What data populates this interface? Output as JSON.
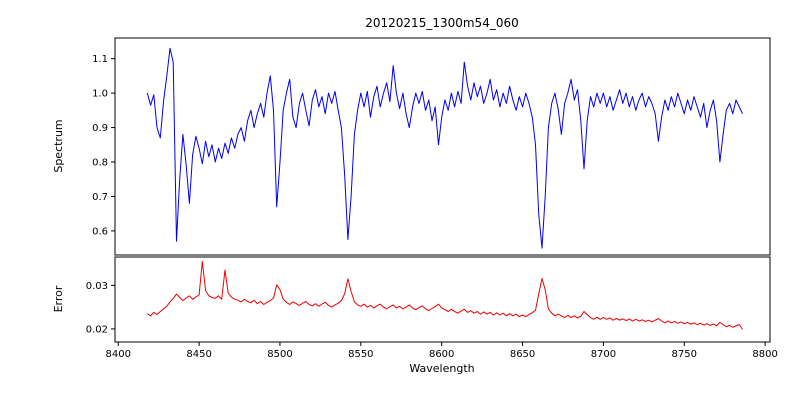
{
  "figure": {
    "title": "20120215_1300m54_060",
    "background": "#ffffff",
    "frame_color": "#000000"
  },
  "axes": {
    "xlabel": "Wavelength",
    "spectrum_ylabel": "Spectrum",
    "error_ylabel": "Error"
  },
  "chart_data": [
    {
      "type": "line",
      "name": "spectrum",
      "title": "20120215_1300m54_060",
      "ylabel": "Spectrum",
      "color": "#0000ee",
      "xlim": [
        8398,
        8803
      ],
      "ylim": [
        0.53,
        1.16
      ],
      "grid": false,
      "legend": "none",
      "ytick_values": [
        0.6,
        0.7,
        0.8,
        0.9,
        1.0,
        1.1
      ],
      "ytick_labels": [
        "0.6",
        "0.7",
        "0.8",
        "0.9",
        "1.0",
        "1.1"
      ],
      "x_start": 8418,
      "x_step": 2,
      "x_end": 8786,
      "y": [
        1.0,
        0.965,
        0.995,
        0.9,
        0.87,
        0.975,
        1.05,
        1.13,
        1.09,
        0.57,
        0.75,
        0.88,
        0.79,
        0.68,
        0.82,
        0.875,
        0.84,
        0.795,
        0.86,
        0.815,
        0.85,
        0.8,
        0.84,
        0.81,
        0.855,
        0.825,
        0.87,
        0.84,
        0.88,
        0.9,
        0.86,
        0.92,
        0.95,
        0.9,
        0.94,
        0.97,
        0.93,
        1.0,
        1.05,
        0.95,
        0.67,
        0.8,
        0.95,
        1.0,
        1.04,
        0.93,
        0.9,
        0.97,
        1.0,
        0.95,
        0.905,
        0.98,
        1.01,
        0.96,
        0.99,
        0.94,
        1.0,
        0.97,
        1.005,
        0.95,
        0.9,
        0.76,
        0.575,
        0.7,
        0.88,
        0.95,
        1.0,
        0.96,
        1.005,
        0.93,
        0.99,
        1.02,
        0.96,
        1.0,
        1.03,
        0.975,
        1.08,
        1.0,
        0.955,
        1.0,
        0.94,
        0.9,
        0.96,
        1.0,
        0.97,
        1.005,
        0.95,
        0.98,
        0.92,
        0.96,
        0.85,
        0.93,
        0.98,
        0.95,
        1.0,
        0.96,
        1.005,
        0.97,
        1.09,
        1.02,
        0.98,
        1.03,
        0.99,
        1.02,
        0.97,
        1.0,
        1.04,
        0.98,
        1.01,
        0.96,
        1.0,
        0.97,
        1.02,
        0.98,
        0.95,
        0.99,
        0.96,
        1.0,
        0.97,
        0.93,
        0.85,
        0.65,
        0.55,
        0.7,
        0.9,
        0.97,
        1.0,
        0.955,
        0.88,
        0.97,
        1.0,
        1.04,
        0.98,
        1.01,
        0.92,
        0.78,
        0.92,
        0.99,
        0.96,
        1.0,
        0.97,
        1.0,
        0.96,
        0.99,
        0.95,
        0.98,
        1.01,
        0.97,
        1.0,
        0.96,
        0.99,
        0.95,
        0.98,
        1.0,
        0.96,
        0.99,
        0.97,
        0.94,
        0.86,
        0.93,
        0.98,
        0.95,
        0.99,
        0.96,
        1.0,
        0.97,
        0.94,
        0.98,
        0.95,
        0.99,
        0.96,
        0.93,
        0.97,
        0.9,
        0.95,
        0.98,
        0.92,
        0.8,
        0.88,
        0.95,
        0.97,
        0.94,
        0.98,
        0.96,
        0.94
      ]
    },
    {
      "type": "line",
      "name": "error",
      "xlabel": "Wavelength",
      "ylabel": "Error",
      "color": "#ee0000",
      "xlim": [
        8398,
        8803
      ],
      "ylim": [
        0.017,
        0.0365
      ],
      "grid": false,
      "legend": "none",
      "ytick_values": [
        0.02,
        0.03
      ],
      "ytick_labels": [
        "0.02",
        "0.03"
      ],
      "xtick_values": [
        8400,
        8450,
        8500,
        8550,
        8600,
        8650,
        8700,
        8750,
        8800
      ],
      "xtick_labels": [
        "8400",
        "8450",
        "8500",
        "8550",
        "8600",
        "8650",
        "8700",
        "8750",
        "8800"
      ],
      "x_start": 8418,
      "x_step": 2,
      "x_end": 8786,
      "y": [
        0.0235,
        0.023,
        0.0238,
        0.0233,
        0.024,
        0.0246,
        0.0252,
        0.0262,
        0.027,
        0.028,
        0.0272,
        0.0265,
        0.0271,
        0.0276,
        0.0268,
        0.0273,
        0.0278,
        0.0355,
        0.0288,
        0.0276,
        0.0272,
        0.027,
        0.0276,
        0.0268,
        0.0335,
        0.0282,
        0.0273,
        0.0268,
        0.0266,
        0.0262,
        0.0268,
        0.0263,
        0.026,
        0.0266,
        0.0258,
        0.0263,
        0.0256,
        0.0261,
        0.0265,
        0.0271,
        0.0301,
        0.029,
        0.0268,
        0.0261,
        0.0256,
        0.0262,
        0.0258,
        0.0254,
        0.0259,
        0.0263,
        0.0256,
        0.0253,
        0.0258,
        0.0252,
        0.0257,
        0.0261,
        0.0254,
        0.025,
        0.0255,
        0.0259,
        0.0265,
        0.0281,
        0.0315,
        0.0286,
        0.0262,
        0.0255,
        0.0252,
        0.0257,
        0.025,
        0.0254,
        0.0248,
        0.0253,
        0.0257,
        0.025,
        0.0246,
        0.0251,
        0.0255,
        0.0248,
        0.0252,
        0.0246,
        0.025,
        0.0255,
        0.0248,
        0.0244,
        0.0249,
        0.0253,
        0.0246,
        0.0242,
        0.0247,
        0.0251,
        0.0257,
        0.0248,
        0.0244,
        0.024,
        0.0245,
        0.024,
        0.0236,
        0.0241,
        0.0245,
        0.0238,
        0.0242,
        0.0236,
        0.024,
        0.0234,
        0.0239,
        0.0234,
        0.0238,
        0.0232,
        0.0237,
        0.0232,
        0.0236,
        0.023,
        0.0235,
        0.023,
        0.0234,
        0.0228,
        0.0232,
        0.0228,
        0.0233,
        0.0237,
        0.0243,
        0.028,
        0.0316,
        0.029,
        0.0246,
        0.0236,
        0.023,
        0.0234,
        0.023,
        0.0226,
        0.0231,
        0.0226,
        0.023,
        0.0225,
        0.0229,
        0.024,
        0.0233,
        0.0226,
        0.0222,
        0.0227,
        0.0222,
        0.0226,
        0.0222,
        0.0225,
        0.022,
        0.0224,
        0.022,
        0.0223,
        0.0219,
        0.0223,
        0.0218,
        0.0222,
        0.0218,
        0.0221,
        0.0217,
        0.022,
        0.0216,
        0.022,
        0.0224,
        0.0218,
        0.0214,
        0.0218,
        0.0214,
        0.0217,
        0.0213,
        0.0216,
        0.0212,
        0.0215,
        0.0211,
        0.0214,
        0.021,
        0.0213,
        0.0209,
        0.0212,
        0.0208,
        0.0211,
        0.0207,
        0.0215,
        0.021,
        0.0205,
        0.0208,
        0.0204,
        0.0207,
        0.021,
        0.0199
      ]
    }
  ]
}
